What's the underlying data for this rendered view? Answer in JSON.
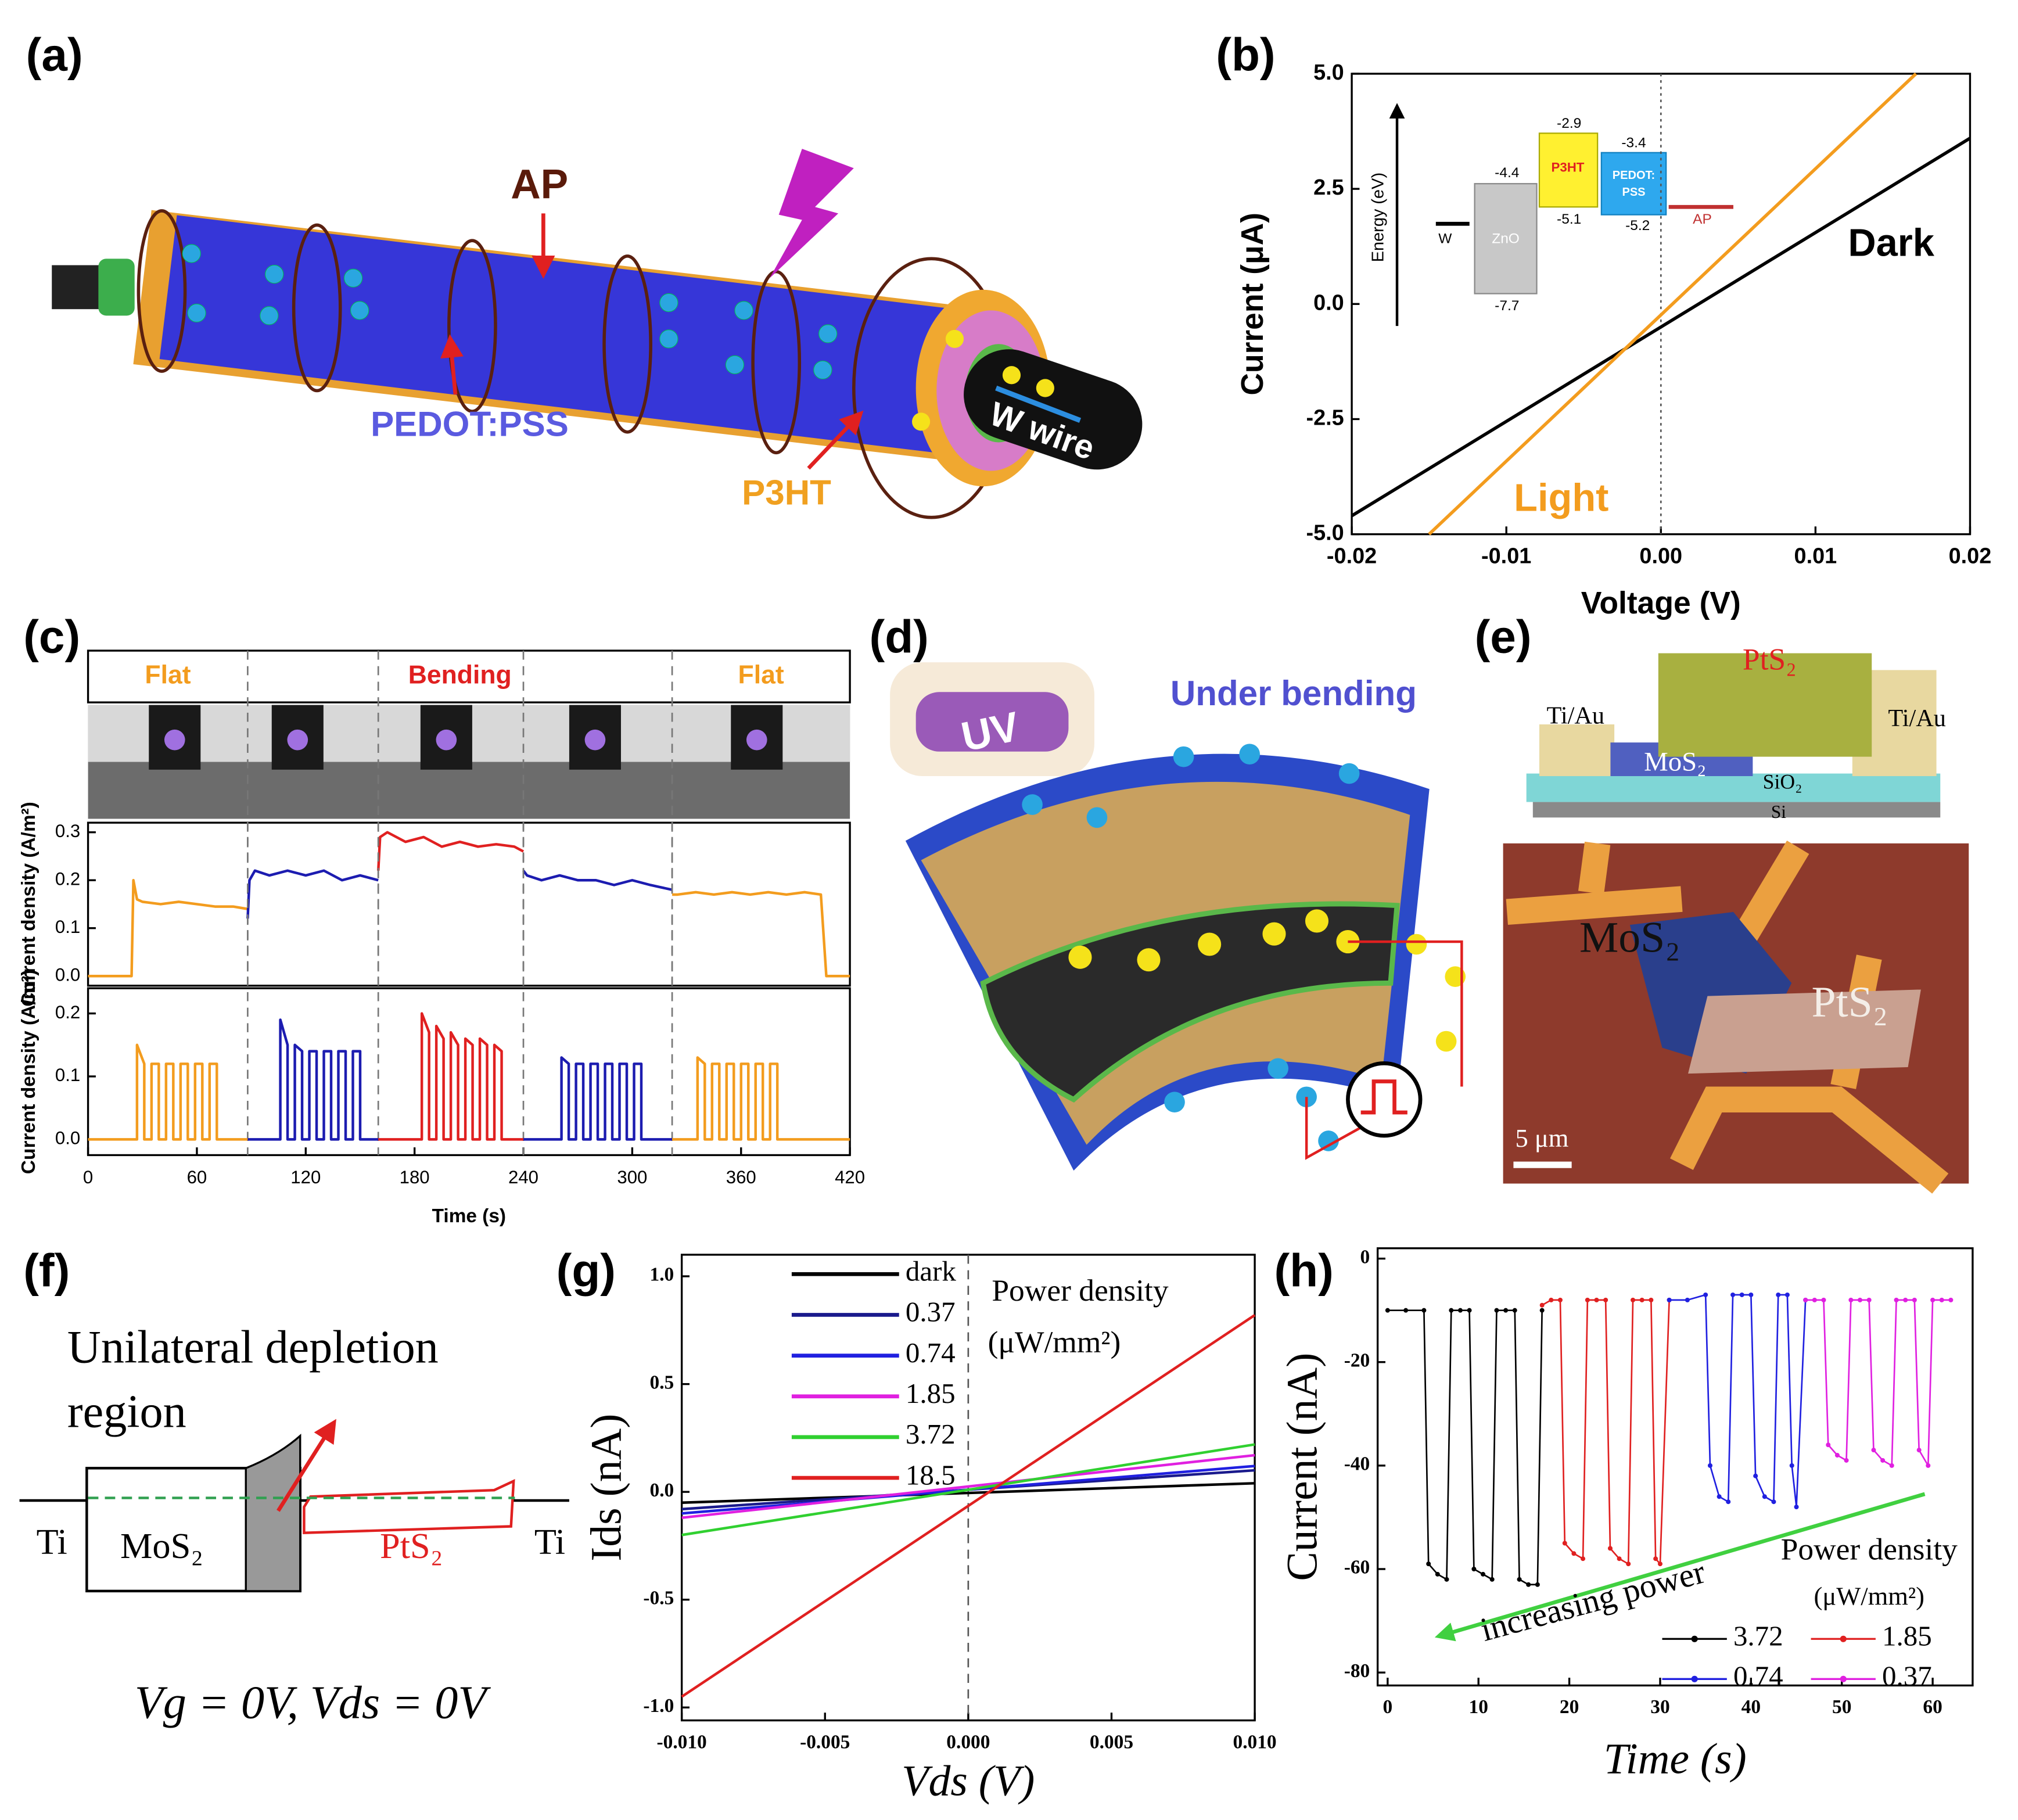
{
  "panel_labels": [
    "(a)",
    "(b)",
    "(c)",
    "(d)",
    "(e)",
    "(f)",
    "(g)",
    "(h)"
  ],
  "diagram_a": {
    "labels": [
      "AP",
      "PEDOT:PSS",
      "P3HT",
      "W wire"
    ]
  },
  "inset_b": {
    "axis_label": "Energy (eV)",
    "materials": [
      "W",
      "ZnO",
      "P3HT",
      "PEDOT:",
      "PSS",
      "AP"
    ],
    "levels": [
      "-4.4",
      "-7.7",
      "-2.9",
      "-5.1",
      "-3.4",
      "-5.2"
    ]
  },
  "diagram_d": {
    "labels": [
      "UV",
      "Under bending"
    ]
  },
  "diagram_e": {
    "schematic": [
      "PtS₂",
      "Ti/Au",
      "Ti/Au",
      "MoS₂",
      "SiO₂",
      "Si"
    ],
    "micrograph": [
      "MoS₂",
      "PtS₂",
      "5 μm"
    ]
  },
  "diagram_f": {
    "title": [
      "Unilateral depletion",
      "region"
    ],
    "labels": [
      "Ti",
      "MoS₂",
      "PtS₂",
      "Ti"
    ],
    "condition": "Vg = 0V, Vds = 0V"
  },
  "chart_data": [
    {
      "type": "line",
      "xlabel": "Voltage (V)",
      "ylabel": "Current (μA)",
      "xlim": [
        -0.02,
        0.02
      ],
      "ylim": [
        -5,
        5
      ],
      "xticks": [
        -0.02,
        -0.01,
        {
          "value": 0,
          "label": "0.00"
        },
        0.01,
        0.02
      ],
      "yticks": [
        {
          "value": -5,
          "label": "-5.0"
        },
        -2.5,
        {
          "value": 0,
          "label": "0.0"
        },
        2.5,
        {
          "value": 5,
          "label": "5.0"
        }
      ],
      "series": [
        {
          "name": "Dark",
          "color": "#000000",
          "x": [
            -0.02,
            0.02
          ],
          "values": [
            -4.6,
            3.6
          ]
        },
        {
          "name": "Light",
          "color": "#f39c1e",
          "x": [
            -0.015,
            0.0165
          ],
          "values": [
            -5,
            5
          ]
        }
      ],
      "annotations": [
        "Dark",
        "Light"
      ],
      "annotation_colors": [
        "#000000",
        "#f39c1e"
      ]
    },
    {
      "type": "line",
      "ylabel": "Current density (A/m²)",
      "xlim": [
        0,
        420
      ],
      "ylim": [
        -0.02,
        0.32
      ],
      "yticks": [
        {
          "value": 0,
          "label": "0.0"
        },
        0.1,
        0.2,
        0.3
      ],
      "vlines": [
        88,
        160,
        240,
        322
      ],
      "segments": [
        "Flat",
        "Bending",
        "Flat"
      ],
      "segment_colors": [
        "#f39c1e",
        "#e02020",
        "#f39c1e"
      ],
      "series": [
        {
          "color": "#f39c1e",
          "x": [
            0,
            24,
            25,
            27,
            30,
            40,
            50,
            60,
            70,
            80,
            88
          ],
          "values": [
            0,
            0,
            0.2,
            0.16,
            0.155,
            0.15,
            0.155,
            0.15,
            0.145,
            0.145,
            0.14
          ]
        },
        {
          "color": "#1c1cb0",
          "x": [
            88,
            89,
            92,
            100,
            110,
            120,
            130,
            140,
            150,
            160
          ],
          "values": [
            0.12,
            0.2,
            0.22,
            0.21,
            0.22,
            0.21,
            0.22,
            0.2,
            0.21,
            0.2
          ]
        },
        {
          "color": "#e02020",
          "x": [
            160,
            161,
            165,
            175,
            185,
            195,
            205,
            215,
            225,
            235,
            240
          ],
          "values": [
            0.22,
            0.29,
            0.3,
            0.28,
            0.29,
            0.27,
            0.28,
            0.27,
            0.275,
            0.27,
            0.26
          ]
        },
        {
          "color": "#1c1cb0",
          "x": [
            240,
            242,
            250,
            260,
            270,
            280,
            290,
            300,
            310,
            322
          ],
          "values": [
            0.22,
            0.21,
            0.2,
            0.21,
            0.2,
            0.2,
            0.19,
            0.2,
            0.19,
            0.18
          ]
        },
        {
          "color": "#f39c1e",
          "x": [
            322,
            325,
            335,
            345,
            355,
            365,
            375,
            385,
            395,
            404,
            407,
            420
          ],
          "values": [
            0.17,
            0.17,
            0.175,
            0.17,
            0.175,
            0.17,
            0.175,
            0.17,
            0.175,
            0.17,
            0,
            0
          ]
        }
      ]
    },
    {
      "type": "line",
      "xlabel": "Time (s)",
      "ylabel": "Current density (A/m²)",
      "xlim": [
        0,
        420
      ],
      "ylim": [
        -0.025,
        0.24
      ],
      "xticks": [
        0,
        60,
        120,
        180,
        240,
        300,
        360,
        420
      ],
      "yticks": [
        {
          "value": 0,
          "label": "0.0"
        },
        0.1,
        0.2
      ],
      "vlines": [
        88,
        160,
        240,
        322
      ],
      "series": [
        {
          "color": "#f39c1e",
          "x": [
            0,
            27,
            27,
            31,
            31,
            35,
            35,
            39,
            39,
            43,
            43,
            47,
            47,
            51,
            51,
            55,
            55,
            59,
            59,
            63,
            63,
            67,
            67,
            71,
            71,
            88
          ],
          "values": [
            0,
            0,
            0.15,
            0.12,
            0,
            0,
            0.12,
            0.12,
            0,
            0,
            0.12,
            0.12,
            0,
            0,
            0.12,
            0.12,
            0,
            0,
            0.12,
            0.12,
            0,
            0,
            0.12,
            0.12,
            0,
            0
          ]
        },
        {
          "color": "#1c1cb0",
          "x": [
            88,
            106,
            106,
            110,
            110,
            114,
            114,
            118,
            118,
            122,
            122,
            126,
            126,
            130,
            130,
            134,
            134,
            138,
            138,
            142,
            142,
            146,
            146,
            150,
            150,
            160
          ],
          "values": [
            0,
            0,
            0.19,
            0.15,
            0,
            0,
            0.15,
            0.14,
            0,
            0,
            0.14,
            0.14,
            0,
            0,
            0.14,
            0.14,
            0,
            0,
            0.14,
            0.14,
            0,
            0,
            0.14,
            0.14,
            0,
            0
          ]
        },
        {
          "color": "#e02020",
          "x": [
            160,
            184,
            184,
            188,
            188,
            192,
            192,
            196,
            196,
            200,
            200,
            204,
            204,
            208,
            208,
            212,
            212,
            216,
            216,
            220,
            220,
            224,
            224,
            228,
            228,
            240
          ],
          "values": [
            0,
            0,
            0.2,
            0.17,
            0,
            0,
            0.18,
            0.16,
            0,
            0,
            0.17,
            0.15,
            0,
            0,
            0.16,
            0.15,
            0,
            0,
            0.16,
            0.15,
            0,
            0,
            0.15,
            0.14,
            0,
            0
          ]
        },
        {
          "color": "#1c1cb0",
          "x": [
            240,
            261,
            261,
            265,
            265,
            269,
            269,
            273,
            273,
            277,
            277,
            281,
            281,
            285,
            285,
            289,
            289,
            293,
            293,
            297,
            297,
            301,
            301,
            305,
            305,
            322
          ],
          "values": [
            0,
            0,
            0.13,
            0.12,
            0,
            0,
            0.12,
            0.12,
            0,
            0,
            0.12,
            0.12,
            0,
            0,
            0.12,
            0.12,
            0,
            0,
            0.12,
            0.12,
            0,
            0,
            0.12,
            0.12,
            0,
            0
          ]
        },
        {
          "color": "#f39c1e",
          "x": [
            322,
            336,
            336,
            340,
            340,
            344,
            344,
            348,
            348,
            352,
            352,
            356,
            356,
            360,
            360,
            364,
            364,
            368,
            368,
            372,
            372,
            376,
            376,
            380,
            380,
            420
          ],
          "values": [
            0,
            0,
            0.13,
            0.12,
            0,
            0,
            0.12,
            0.12,
            0,
            0,
            0.12,
            0.12,
            0,
            0,
            0.12,
            0.12,
            0,
            0,
            0.12,
            0.12,
            0,
            0,
            0.12,
            0.12,
            0,
            0
          ]
        }
      ]
    },
    {
      "type": "line",
      "xlabel": "Vds (V)",
      "ylabel": "Ids (nA)",
      "xlim": [
        -0.01,
        0.01
      ],
      "ylim": [
        -1.06,
        1.1
      ],
      "xticks": [
        {
          "value": -0.01,
          "label": "-0.010"
        },
        -0.005,
        {
          "value": 0,
          "label": "0.000"
        },
        0.005,
        {
          "value": 0.01,
          "label": "0.010"
        }
      ],
      "yticks": [
        {
          "value": -1,
          "label": "-1.0"
        },
        -0.5,
        {
          "value": 0,
          "label": "0.0"
        },
        0.5,
        {
          "value": 1,
          "label": "1.0"
        }
      ],
      "legend": "upper left",
      "series": [
        {
          "name": "dark",
          "color": "#000000",
          "x": [
            -0.01,
            0.01
          ],
          "values": [
            -0.05,
            0.04
          ]
        },
        {
          "name": "0.37",
          "color": "#1a1a8c",
          "x": [
            -0.01,
            0.01
          ],
          "values": [
            -0.08,
            0.1
          ]
        },
        {
          "name": "0.74",
          "color": "#2020e0",
          "x": [
            -0.01,
            0.01
          ],
          "values": [
            -0.1,
            0.12
          ]
        },
        {
          "name": "1.85",
          "color": "#e020e0",
          "x": [
            -0.01,
            0.01
          ],
          "values": [
            -0.12,
            0.17
          ]
        },
        {
          "name": "3.72",
          "color": "#30d030",
          "x": [
            -0.01,
            0.01
          ],
          "values": [
            -0.2,
            0.22
          ]
        },
        {
          "name": "18.5",
          "color": "#e02020",
          "x": [
            -0.01,
            0.01
          ],
          "values": [
            -0.95,
            0.82
          ]
        }
      ],
      "annotations": [
        "Power density",
        "(μW/mm²)"
      ]
    },
    {
      "type": "line",
      "xlabel": "Time (s)",
      "ylabel": "Current (nA)",
      "xlim": [
        -1.1,
        64.4
      ],
      "ylim": [
        -82.5,
        2
      ],
      "xticks": [
        0,
        10,
        20,
        30,
        40,
        50,
        60
      ],
      "yticks": [
        0,
        -20,
        -40,
        -60,
        -80
      ],
      "markers": true,
      "legend": "lower right",
      "series": [
        {
          "name": "3.72",
          "color": "#000000",
          "x": [
            0,
            2,
            4,
            4.5,
            5.5,
            6.5,
            7,
            8,
            9,
            9.5,
            10.5,
            11.5,
            12,
            13,
            14,
            14.5,
            15.5,
            16.5,
            17
          ],
          "values": [
            -10,
            -10,
            -10,
            -59,
            -61,
            -62,
            -10,
            -10,
            -10,
            -60,
            -61,
            -62,
            -10,
            -10,
            -10,
            -62,
            -63,
            -63,
            -10
          ]
        },
        {
          "name": "1.85",
          "color": "#e02020",
          "x": [
            17,
            18,
            19,
            19.5,
            20.5,
            21.5,
            22,
            23,
            24,
            24.5,
            25.5,
            26.5,
            27,
            28,
            29,
            29.5,
            30,
            31
          ],
          "values": [
            -9,
            -8,
            -8,
            -55,
            -57,
            -58,
            -8,
            -8,
            -8,
            -56,
            -58,
            -59,
            -8,
            -8,
            -8,
            -58,
            -59,
            -8
          ]
        },
        {
          "name": "0.74",
          "color": "#2020e0",
          "x": [
            31,
            33,
            35,
            35.5,
            36.5,
            37.5,
            38,
            39,
            40,
            40.5,
            41.5,
            42.5,
            43,
            44,
            44.5,
            45,
            46
          ],
          "values": [
            -8,
            -8,
            -7,
            -40,
            -46,
            -47,
            -7,
            -7,
            -7,
            -42,
            -46,
            -47,
            -7,
            -7,
            -40,
            -48,
            -8
          ]
        },
        {
          "name": "0.37",
          "color": "#e020e0",
          "x": [
            46,
            47,
            48,
            48.5,
            49.5,
            50.5,
            51,
            52,
            53,
            53.5,
            54.5,
            55.5,
            56,
            57,
            58,
            58.5,
            59.5,
            60,
            61,
            62
          ],
          "values": [
            -8,
            -8,
            -8,
            -36,
            -38,
            -39,
            -8,
            -8,
            -8,
            -37,
            -39,
            -40,
            -8,
            -8,
            -8,
            -37,
            -40,
            -8,
            -8,
            -8
          ]
        }
      ],
      "annotations": [
        "increasing power",
        "Power density",
        "(μW/mm²)"
      ]
    }
  ]
}
